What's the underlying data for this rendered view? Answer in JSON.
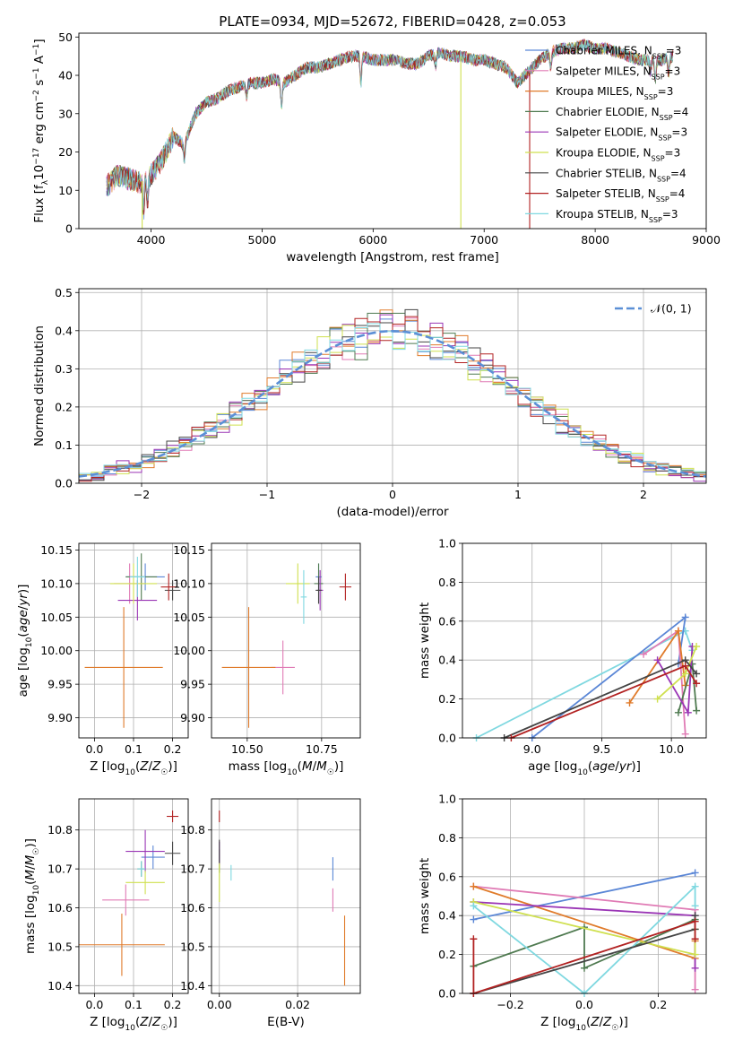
{
  "figure": {
    "title": "PLATE=0934, MJD=52672, FIBERID=0428, z=0.053"
  },
  "chart_data": [
    {
      "id": "spectrum",
      "type": "line",
      "title": "PLATE=0934, MJD=52672, FIBERID=0428, z=0.053",
      "xlabel": "wavelength [Angstrom, rest frame]",
      "ylabel": "Flux [f_λ 10^-17 erg cm^-2 s^-1 A^-1]",
      "xlim": [
        3350,
        9000
      ],
      "ylim": [
        0,
        51
      ],
      "xticks": [
        4000,
        5000,
        6000,
        7000,
        8000,
        9000
      ],
      "yticks": [
        0,
        10,
        20,
        30,
        40,
        50
      ],
      "grid": false,
      "legend": "right",
      "x": [
        3600,
        3700,
        3800,
        3900,
        4000,
        4100,
        4200,
        4300,
        4400,
        4500,
        4600,
        4700,
        4800,
        4900,
        5000,
        5100,
        5200,
        5300,
        5400,
        5500,
        5600,
        5700,
        5800,
        5900,
        6000,
        6100,
        6200,
        6300,
        6400,
        6500,
        6600,
        6700,
        6800,
        6900,
        7000,
        7100,
        7200,
        7300,
        7400,
        7500,
        7600,
        7700,
        7800,
        7900,
        8000,
        8100,
        8200,
        8300,
        8400,
        8500,
        8600,
        8700
      ],
      "series": [
        {
          "name": "Chabrier MILES, N_SSP=3",
          "color": "#5a86d6"
        },
        {
          "name": "Salpeter MILES, N_SSP=3",
          "color": "#e07bb5"
        },
        {
          "name": "Kroupa MILES, N_SSP=3",
          "color": "#e07b2b"
        },
        {
          "name": "Chabrier ELODIE, N_SSP=4",
          "color": "#4f7a50"
        },
        {
          "name": "Salpeter ELODIE, N_SSP=3",
          "color": "#9a35b5"
        },
        {
          "name": "Kroupa ELODIE, N_SSP=3",
          "color": "#cfe04f"
        },
        {
          "name": "Chabrier STELIB, N_SSP=4",
          "color": "#444444"
        },
        {
          "name": "Salpeter STELIB, N_SSP=4",
          "color": "#b22222"
        },
        {
          "name": "Kroupa STELIB, N_SSP=3",
          "color": "#7fd8e0"
        }
      ],
      "y": [
        11,
        14,
        13,
        12,
        14,
        18,
        24,
        22,
        30,
        33,
        34,
        36,
        37,
        38,
        38,
        39,
        38,
        40,
        42,
        42,
        43,
        44,
        45,
        45,
        44,
        44,
        44,
        43,
        43,
        45,
        46,
        45,
        45,
        44,
        44,
        43,
        42,
        38,
        41,
        44,
        46,
        47,
        47,
        48,
        47,
        47,
        46,
        45,
        44,
        44,
        44,
        45
      ],
      "dropouts": [
        {
          "x": 3920,
          "y": 0,
          "color": "#cfe04f"
        },
        {
          "x": 6790,
          "y": 0,
          "color": "#cfe04f"
        },
        {
          "x": 7410,
          "y": 0,
          "color": "#b22222"
        }
      ]
    },
    {
      "id": "residuals",
      "type": "line",
      "xlabel": "(data-model)/error",
      "ylabel": "Normed distribution",
      "xlim": [
        -2.5,
        2.5
      ],
      "ylim": [
        0,
        0.51
      ],
      "xticks": [
        -2,
        -1,
        0,
        1,
        2
      ],
      "yticks": [
        0.0,
        0.1,
        0.2,
        0.3,
        0.4,
        0.5
      ],
      "grid": true,
      "legend": "top-right",
      "legend_label": "𝒩(0, 1)",
      "gaussian": {
        "mean": 0,
        "sigma": 1,
        "color": "#5b8fd6"
      },
      "bin_width": 0.1,
      "bin_start": -2.5,
      "series_colors": [
        "#5a86d6",
        "#e07bb5",
        "#e07b2b",
        "#4f7a50",
        "#9a35b5",
        "#cfe04f",
        "#444444",
        "#b22222",
        "#7fd8e0"
      ]
    },
    {
      "id": "age_vs_Z",
      "type": "scatter",
      "xlabel": "Z [log10(Z/Z☉)]",
      "ylabel": "age  [log10(age/yr)]",
      "xlim": [
        -0.04,
        0.24
      ],
      "ylim": [
        9.87,
        10.16
      ],
      "xticks": [
        0.0,
        0.1,
        0.2
      ],
      "yticks": [
        9.9,
        9.95,
        10.0,
        10.05,
        10.1,
        10.15
      ],
      "grid": true,
      "points": [
        {
          "x": 0.13,
          "y": 10.11,
          "xerr": 0.05,
          "yerr": 0.02,
          "color": "#5a86d6"
        },
        {
          "x": 0.09,
          "y": 10.1,
          "xerr": 0.04,
          "yerr": 0.03,
          "color": "#e07bb5"
        },
        {
          "x": 0.075,
          "y": 9.975,
          "xerr": 0.1,
          "yerr": 0.09,
          "color": "#e07b2b"
        },
        {
          "x": 0.12,
          "y": 10.11,
          "xerr": 0.04,
          "yerr": 0.035,
          "color": "#4f7a50"
        },
        {
          "x": 0.11,
          "y": 10.075,
          "xerr": 0.05,
          "yerr": 0.03,
          "color": "#9a35b5"
        },
        {
          "x": 0.1,
          "y": 10.1,
          "xerr": 0.06,
          "yerr": 0.03,
          "color": "#cfe04f"
        },
        {
          "x": 0.2,
          "y": 10.09,
          "xerr": 0.02,
          "yerr": 0.015,
          "color": "#444444"
        },
        {
          "x": 0.19,
          "y": 10.095,
          "xerr": 0.02,
          "yerr": 0.02,
          "color": "#b22222"
        },
        {
          "x": 0.11,
          "y": 10.11,
          "xerr": 0.02,
          "yerr": 0.03,
          "color": "#7fd8e0"
        }
      ]
    },
    {
      "id": "age_vs_mass",
      "type": "scatter",
      "xlabel": "mass [log10(M/M☉)]",
      "xlim": [
        10.38,
        10.88
      ],
      "ylim": [
        9.87,
        10.16
      ],
      "xticks": [
        10.5,
        10.75
      ],
      "yticks": [
        9.9,
        9.95,
        10.0,
        10.05,
        10.1,
        10.15
      ],
      "grid": true,
      "points": [
        {
          "x": 10.74,
          "y": 10.11,
          "xerr": 0.01,
          "yerr": 0.02,
          "color": "#5a86d6"
        },
        {
          "x": 10.62,
          "y": 9.975,
          "xerr": 0.04,
          "yerr": 0.04,
          "color": "#e07bb5"
        },
        {
          "x": 10.505,
          "y": 9.975,
          "xerr": 0.09,
          "yerr": 0.09,
          "color": "#e07b2b"
        },
        {
          "x": 10.74,
          "y": 10.1,
          "xerr": 0.015,
          "yerr": 0.03,
          "color": "#4f7a50"
        },
        {
          "x": 10.745,
          "y": 10.09,
          "xerr": 0.01,
          "yerr": 0.03,
          "color": "#9a35b5"
        },
        {
          "x": 10.67,
          "y": 10.1,
          "xerr": 0.04,
          "yerr": 0.03,
          "color": "#cfe04f"
        },
        {
          "x": 10.74,
          "y": 10.09,
          "xerr": 0.01,
          "yerr": 0.02,
          "color": "#444444"
        },
        {
          "x": 10.83,
          "y": 10.095,
          "xerr": 0.02,
          "yerr": 0.02,
          "color": "#b22222"
        },
        {
          "x": 10.69,
          "y": 10.08,
          "xerr": 0.01,
          "yerr": 0.04,
          "color": "#7fd8e0"
        }
      ]
    },
    {
      "id": "mass_weight_vs_age",
      "type": "line",
      "xlabel": "age  [log10(age/yr)]",
      "ylabel": "mass weight",
      "xlim": [
        8.5,
        10.25
      ],
      "ylim": [
        0,
        1.0
      ],
      "xticks": [
        9.0,
        9.5,
        10.0
      ],
      "yticks": [
        0.0,
        0.2,
        0.4,
        0.6,
        0.8,
        1.0
      ],
      "grid": true,
      "series": [
        {
          "color": "#7fd8e0",
          "x": [
            8.6,
            10.1,
            10.15
          ],
          "y": [
            0.0,
            0.55,
            0.45
          ]
        },
        {
          "color": "#5a86d6",
          "x": [
            9.0,
            10.1,
            10.05
          ],
          "y": [
            0.0,
            0.62,
            0.38
          ]
        },
        {
          "color": "#e07bb5",
          "x": [
            9.8,
            10.05,
            10.1
          ],
          "y": [
            0.43,
            0.55,
            0.02
          ]
        },
        {
          "color": "#e07b2b",
          "x": [
            9.7,
            10.05,
            10.1
          ],
          "y": [
            0.18,
            0.55,
            0.27
          ]
        },
        {
          "color": "#4f7a50",
          "x": [
            10.05,
            10.15,
            10.18
          ],
          "y": [
            0.13,
            0.38,
            0.14
          ]
        },
        {
          "color": "#9a35b5",
          "x": [
            9.9,
            10.12,
            10.15
          ],
          "y": [
            0.4,
            0.13,
            0.47
          ]
        },
        {
          "color": "#cfe04f",
          "x": [
            9.9,
            10.1,
            10.18
          ],
          "y": [
            0.2,
            0.33,
            0.47
          ]
        },
        {
          "color": "#444444",
          "x": [
            8.8,
            10.1,
            10.18
          ],
          "y": [
            0.0,
            0.4,
            0.33
          ]
        },
        {
          "color": "#b22222",
          "x": [
            8.85,
            10.1,
            10.18
          ],
          "y": [
            0.0,
            0.37,
            0.28
          ]
        }
      ]
    },
    {
      "id": "mass_vs_Z",
      "type": "scatter",
      "xlabel": "Z [log10(Z/Z☉)]",
      "ylabel": "mass [log10(M/M☉)]",
      "xlim": [
        -0.04,
        0.24
      ],
      "ylim": [
        10.38,
        10.88
      ],
      "xticks": [
        0.0,
        0.1,
        0.2
      ],
      "yticks": [
        10.4,
        10.5,
        10.6,
        10.7,
        10.8
      ],
      "grid": true,
      "points": [
        {
          "x": 0.15,
          "y": 10.73,
          "xerr": 0.03,
          "yerr": 0.03,
          "color": "#5a86d6"
        },
        {
          "x": 0.08,
          "y": 10.62,
          "xerr": 0.06,
          "yerr": 0.04,
          "color": "#e07bb5"
        },
        {
          "x": 0.07,
          "y": 10.505,
          "xerr": 0.11,
          "yerr": 0.08,
          "color": "#e07b2b"
        },
        {
          "x": 0.12,
          "y": 10.7,
          "xerr": 0.01,
          "yerr": 0.02,
          "color": "#4f7a50"
        },
        {
          "x": 0.13,
          "y": 10.745,
          "xerr": 0.05,
          "yerr": 0.055,
          "color": "#9a35b5"
        },
        {
          "x": 0.13,
          "y": 10.665,
          "xerr": 0.05,
          "yerr": 0.03,
          "color": "#cfe04f"
        },
        {
          "x": 0.2,
          "y": 10.74,
          "xerr": 0.02,
          "yerr": 0.03,
          "color": "#444444"
        },
        {
          "x": 0.2,
          "y": 10.835,
          "xerr": 0.015,
          "yerr": 0.015,
          "color": "#b22222"
        },
        {
          "x": 0.12,
          "y": 10.7,
          "xerr": 0.01,
          "yerr": 0.02,
          "color": "#7fd8e0"
        }
      ]
    },
    {
      "id": "mass_vs_ebv",
      "type": "scatter",
      "xlabel": "E(B-V)",
      "xlim": [
        -0.002,
        0.036
      ],
      "ylim": [
        10.38,
        10.88
      ],
      "xticks": [
        0.0,
        0.02
      ],
      "yticks": [
        10.4,
        10.5,
        10.6,
        10.7,
        10.8
      ],
      "grid": true,
      "points": [
        {
          "x": 0.029,
          "y": 10.7,
          "xerr": 0.0,
          "yerr": 0.03,
          "color": "#5a86d6"
        },
        {
          "x": 0.029,
          "y": 10.62,
          "xerr": 0.0,
          "yerr": 0.03,
          "color": "#e07bb5"
        },
        {
          "x": 0.032,
          "y": 10.49,
          "xerr": 0.0,
          "yerr": 0.09,
          "color": "#e07b2b"
        },
        {
          "x": 0.0,
          "y": 10.72,
          "xerr": 0.0,
          "yerr": 0.03,
          "color": "#4f7a50"
        },
        {
          "x": 0.0,
          "y": 10.74,
          "xerr": 0.0,
          "yerr": 0.03,
          "color": "#9a35b5"
        },
        {
          "x": 0.0,
          "y": 10.665,
          "xerr": 0.0,
          "yerr": 0.05,
          "color": "#cfe04f"
        },
        {
          "x": 0.0,
          "y": 10.745,
          "xerr": 0.0,
          "yerr": 0.03,
          "color": "#444444"
        },
        {
          "x": 0.0,
          "y": 10.835,
          "xerr": 0.0,
          "yerr": 0.015,
          "color": "#b22222"
        },
        {
          "x": 0.003,
          "y": 10.69,
          "xerr": 0.0,
          "yerr": 0.02,
          "color": "#7fd8e0"
        }
      ]
    },
    {
      "id": "mass_weight_vs_Z",
      "type": "line",
      "xlabel": "Z [log10(Z/Z☉)]",
      "ylabel": "mass weight",
      "xlim": [
        -0.33,
        0.33
      ],
      "ylim": [
        0,
        1.0
      ],
      "xticks": [
        -0.2,
        0.0,
        0.2
      ],
      "yticks": [
        0.0,
        0.2,
        0.4,
        0.6,
        0.8,
        1.0
      ],
      "grid": true,
      "series": [
        {
          "color": "#5a86d6",
          "x": [
            -0.3,
            0.3
          ],
          "y": [
            0.38,
            0.62
          ]
        },
        {
          "color": "#e07bb5",
          "x": [
            -0.3,
            0.3,
            0.3
          ],
          "y": [
            0.55,
            0.43,
            0.02
          ]
        },
        {
          "color": "#e07b2b",
          "x": [
            -0.3,
            0.3,
            0.3
          ],
          "y": [
            0.55,
            0.18,
            0.27
          ]
        },
        {
          "color": "#4f7a50",
          "x": [
            -0.3,
            0.0,
            0.0,
            0.3
          ],
          "y": [
            0.14,
            0.34,
            0.13,
            0.38
          ]
        },
        {
          "color": "#9a35b5",
          "x": [
            -0.3,
            0.3,
            0.3
          ],
          "y": [
            0.47,
            0.4,
            0.13
          ]
        },
        {
          "color": "#cfe04f",
          "x": [
            -0.3,
            0.3,
            0.3
          ],
          "y": [
            0.47,
            0.2,
            0.33
          ]
        },
        {
          "color": "#7fd8e0",
          "x": [
            -0.3,
            0.0,
            0.3,
            0.3
          ],
          "y": [
            0.45,
            0.0,
            0.55,
            0.45
          ]
        },
        {
          "color": "#444444",
          "x": [
            -0.3,
            0.3,
            0.3
          ],
          "y": [
            0.0,
            0.33,
            0.4
          ]
        },
        {
          "color": "#b22222",
          "x": [
            -0.3,
            -0.3,
            0.3,
            0.3
          ],
          "y": [
            0.28,
            0.0,
            0.37,
            0.28
          ]
        }
      ]
    }
  ]
}
